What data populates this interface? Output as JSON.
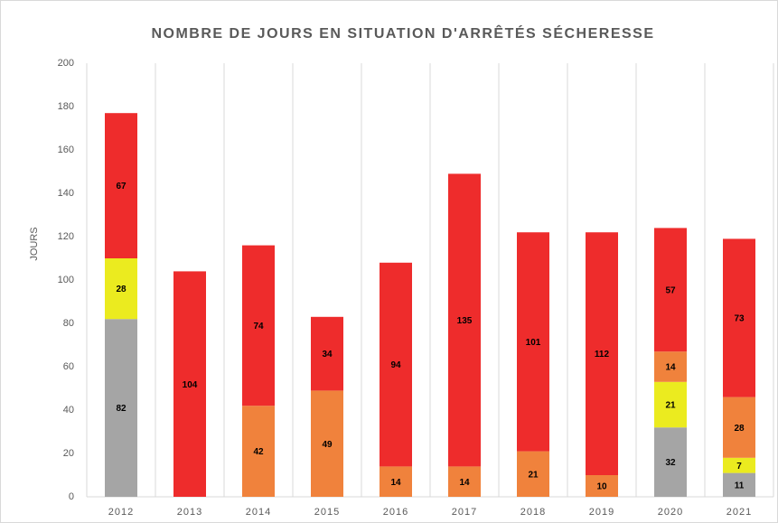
{
  "chart_data": {
    "type": "stacked_bar",
    "title": "NOMBRE DE JOURS EN SITUATION D'ARRÊTÉS SÉCHERESSE",
    "ylabel": "JOURS",
    "categories": [
      "2012",
      "2013",
      "2014",
      "2015",
      "2016",
      "2017",
      "2018",
      "2019",
      "2020",
      "2021"
    ],
    "series": [
      {
        "color": "#a5a5a5",
        "values": [
          82,
          null,
          null,
          null,
          null,
          null,
          null,
          null,
          32,
          11
        ]
      },
      {
        "color": "#ebeb1f",
        "values": [
          28,
          null,
          null,
          null,
          null,
          null,
          null,
          null,
          21,
          7
        ]
      },
      {
        "color": "#f0823c",
        "values": [
          null,
          null,
          42,
          49,
          14,
          14,
          21,
          10,
          14,
          28
        ]
      },
      {
        "color": "#ee2c2c",
        "values": [
          67,
          104,
          74,
          34,
          94,
          135,
          101,
          112,
          57,
          73
        ]
      }
    ],
    "ylim": [
      0,
      200
    ],
    "yticks": [
      0,
      20,
      40,
      60,
      80,
      100,
      120,
      140,
      160,
      180,
      200
    ],
    "grid": "x"
  }
}
